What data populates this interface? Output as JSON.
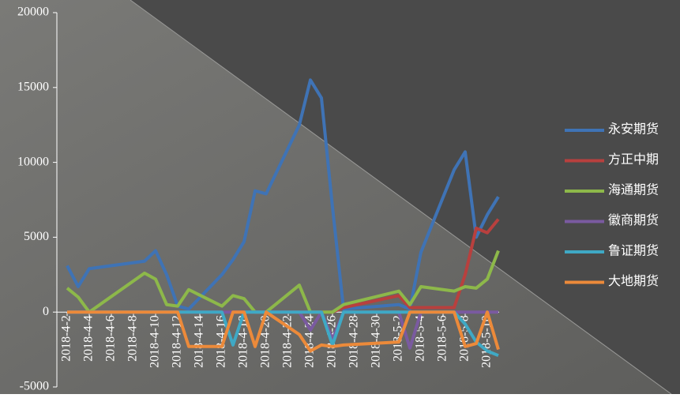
{
  "chart_data": {
    "type": "line",
    "x": [
      "2018-4-2",
      "2018-4-3",
      "2018-4-4",
      "2018-4-9",
      "2018-4-10",
      "2018-4-11",
      "2018-4-12",
      "2018-4-13",
      "2018-4-16",
      "2018-4-17",
      "2018-4-18",
      "2018-4-19",
      "2018-4-20",
      "2018-4-23",
      "2018-4-24",
      "2018-4-25",
      "2018-4-26",
      "2018-4-27",
      "2018-5-2",
      "2018-5-3",
      "2018-5-4",
      "2018-5-7",
      "2018-5-8",
      "2018-5-9",
      "2018-5-10",
      "2018-5-11"
    ],
    "xticks": [
      "2018-4-2",
      "2018-4-4",
      "2018-4-6",
      "2018-4-8",
      "2018-4-10",
      "2018-4-12",
      "2018-4-14",
      "2018-4-16",
      "2018-4-18",
      "2018-4-20",
      "2018-4-22",
      "2018-4-24",
      "2018-4-26",
      "2018-4-28",
      "2018-4-30",
      "2018-5-2",
      "2018-5-4",
      "2018-5-6",
      "2018-5-8",
      "2018-5-10"
    ],
    "series": [
      {
        "name": "永安期货",
        "color": "#3f73b5",
        "values": [
          3100,
          1700,
          2900,
          3400,
          4100,
          2500,
          400,
          200,
          2500,
          3500,
          4700,
          8100,
          7900,
          12500,
          15500,
          14300,
          7000,
          200,
          500,
          200,
          4000,
          9500,
          10700,
          5000,
          6500,
          7700
        ]
      },
      {
        "name": "方正中期",
        "color": "#b8403e",
        "values": [
          0,
          0,
          0,
          0,
          0,
          0,
          0,
          0,
          0,
          0,
          0,
          0,
          0,
          0,
          0,
          0,
          0,
          300,
          1100,
          300,
          300,
          300,
          2500,
          5600,
          5300,
          6200
        ]
      },
      {
        "name": "海通期货",
        "color": "#8db84a",
        "values": [
          1600,
          1000,
          0,
          2600,
          2200,
          500,
          400,
          1500,
          400,
          1100,
          900,
          0,
          0,
          1800,
          0,
          0,
          0,
          500,
          1400,
          500,
          1700,
          1400,
          1700,
          1600,
          2200,
          4100
        ]
      },
      {
        "name": "徽商期货",
        "color": "#7a5aa0",
        "values": [
          0,
          0,
          0,
          0,
          0,
          0,
          0,
          0,
          0,
          0,
          0,
          0,
          0,
          0,
          -1200,
          0,
          -1800,
          0,
          0,
          -2400,
          0,
          0,
          0,
          0,
          0,
          0
        ]
      },
      {
        "name": "鲁证期货",
        "color": "#3fa9c5",
        "values": [
          0,
          0,
          0,
          0,
          0,
          0,
          0,
          0,
          0,
          -2200,
          0,
          0,
          0,
          0,
          0,
          0,
          -2200,
          0,
          0,
          0,
          0,
          0,
          -800,
          -2000,
          -2600,
          -2900
        ]
      },
      {
        "name": "大地期货",
        "color": "#ec8a3a",
        "values": [
          0,
          0,
          0,
          0,
          0,
          0,
          0,
          -2300,
          -2300,
          0,
          0,
          -2300,
          0,
          -1500,
          -2600,
          -2200,
          -2300,
          -2200,
          -2000,
          0,
          0,
          0,
          -2300,
          -2100,
          0,
          -2500
        ]
      }
    ],
    "ylim": [
      -5000,
      20000
    ],
    "yticks": [
      -5000,
      0,
      5000,
      10000,
      15000,
      20000
    ]
  }
}
